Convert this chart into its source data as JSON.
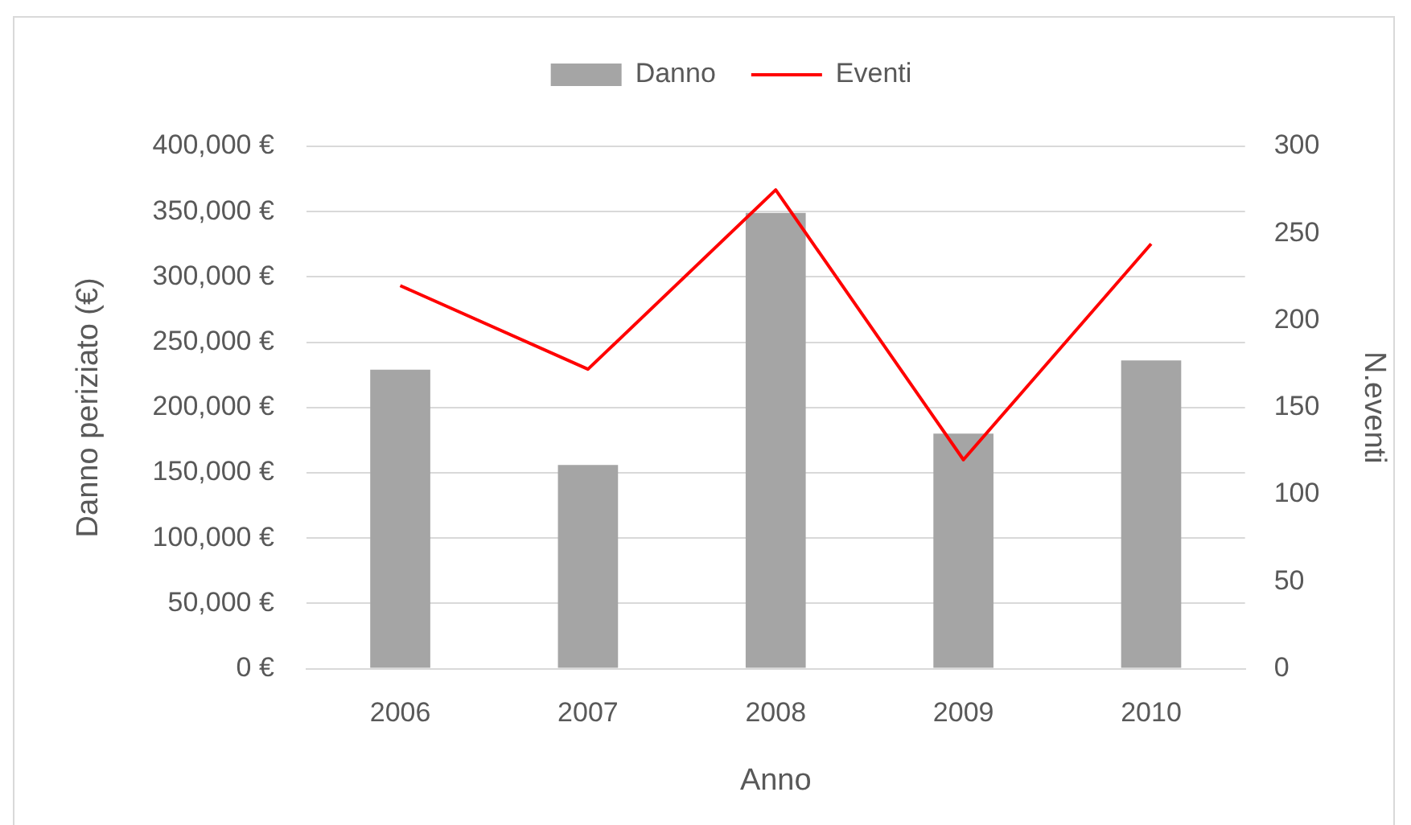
{
  "chart_data": {
    "type": "bar",
    "xlabel": "Anno",
    "ylabel": "Danno periziato (€)",
    "y2label": "N.eventi",
    "categories": [
      "2006",
      "2007",
      "2008",
      "2009",
      "2010"
    ],
    "series": [
      {
        "name": "Danno",
        "color": "#a5a5a5",
        "values": [
          229000,
          156000,
          349000,
          180000,
          236000
        ]
      },
      {
        "name": "Eventi",
        "type": "line",
        "axis": "y2",
        "color": "#ff0000",
        "values": [
          220,
          172,
          275,
          120,
          244
        ]
      }
    ],
    "ylim": [
      0,
      400000
    ],
    "yticks": [
      {
        "value": 0,
        "label": "0 €"
      },
      {
        "value": 50000,
        "label": "50,000 €"
      },
      {
        "value": 100000,
        "label": "100,000 €"
      },
      {
        "value": 150000,
        "label": "150,000 €"
      },
      {
        "value": 200000,
        "label": "200,000 €"
      },
      {
        "value": 250000,
        "label": "250,000 €"
      },
      {
        "value": 300000,
        "label": "300,000 €"
      },
      {
        "value": 350000,
        "label": "350,000 €"
      },
      {
        "value": 400000,
        "label": "400,000 €"
      }
    ],
    "y2lim": [
      0,
      300
    ],
    "y2ticks": [
      0,
      50,
      100,
      150,
      200,
      250,
      300
    ],
    "grid": "y",
    "legend": "top",
    "marker": "none"
  }
}
